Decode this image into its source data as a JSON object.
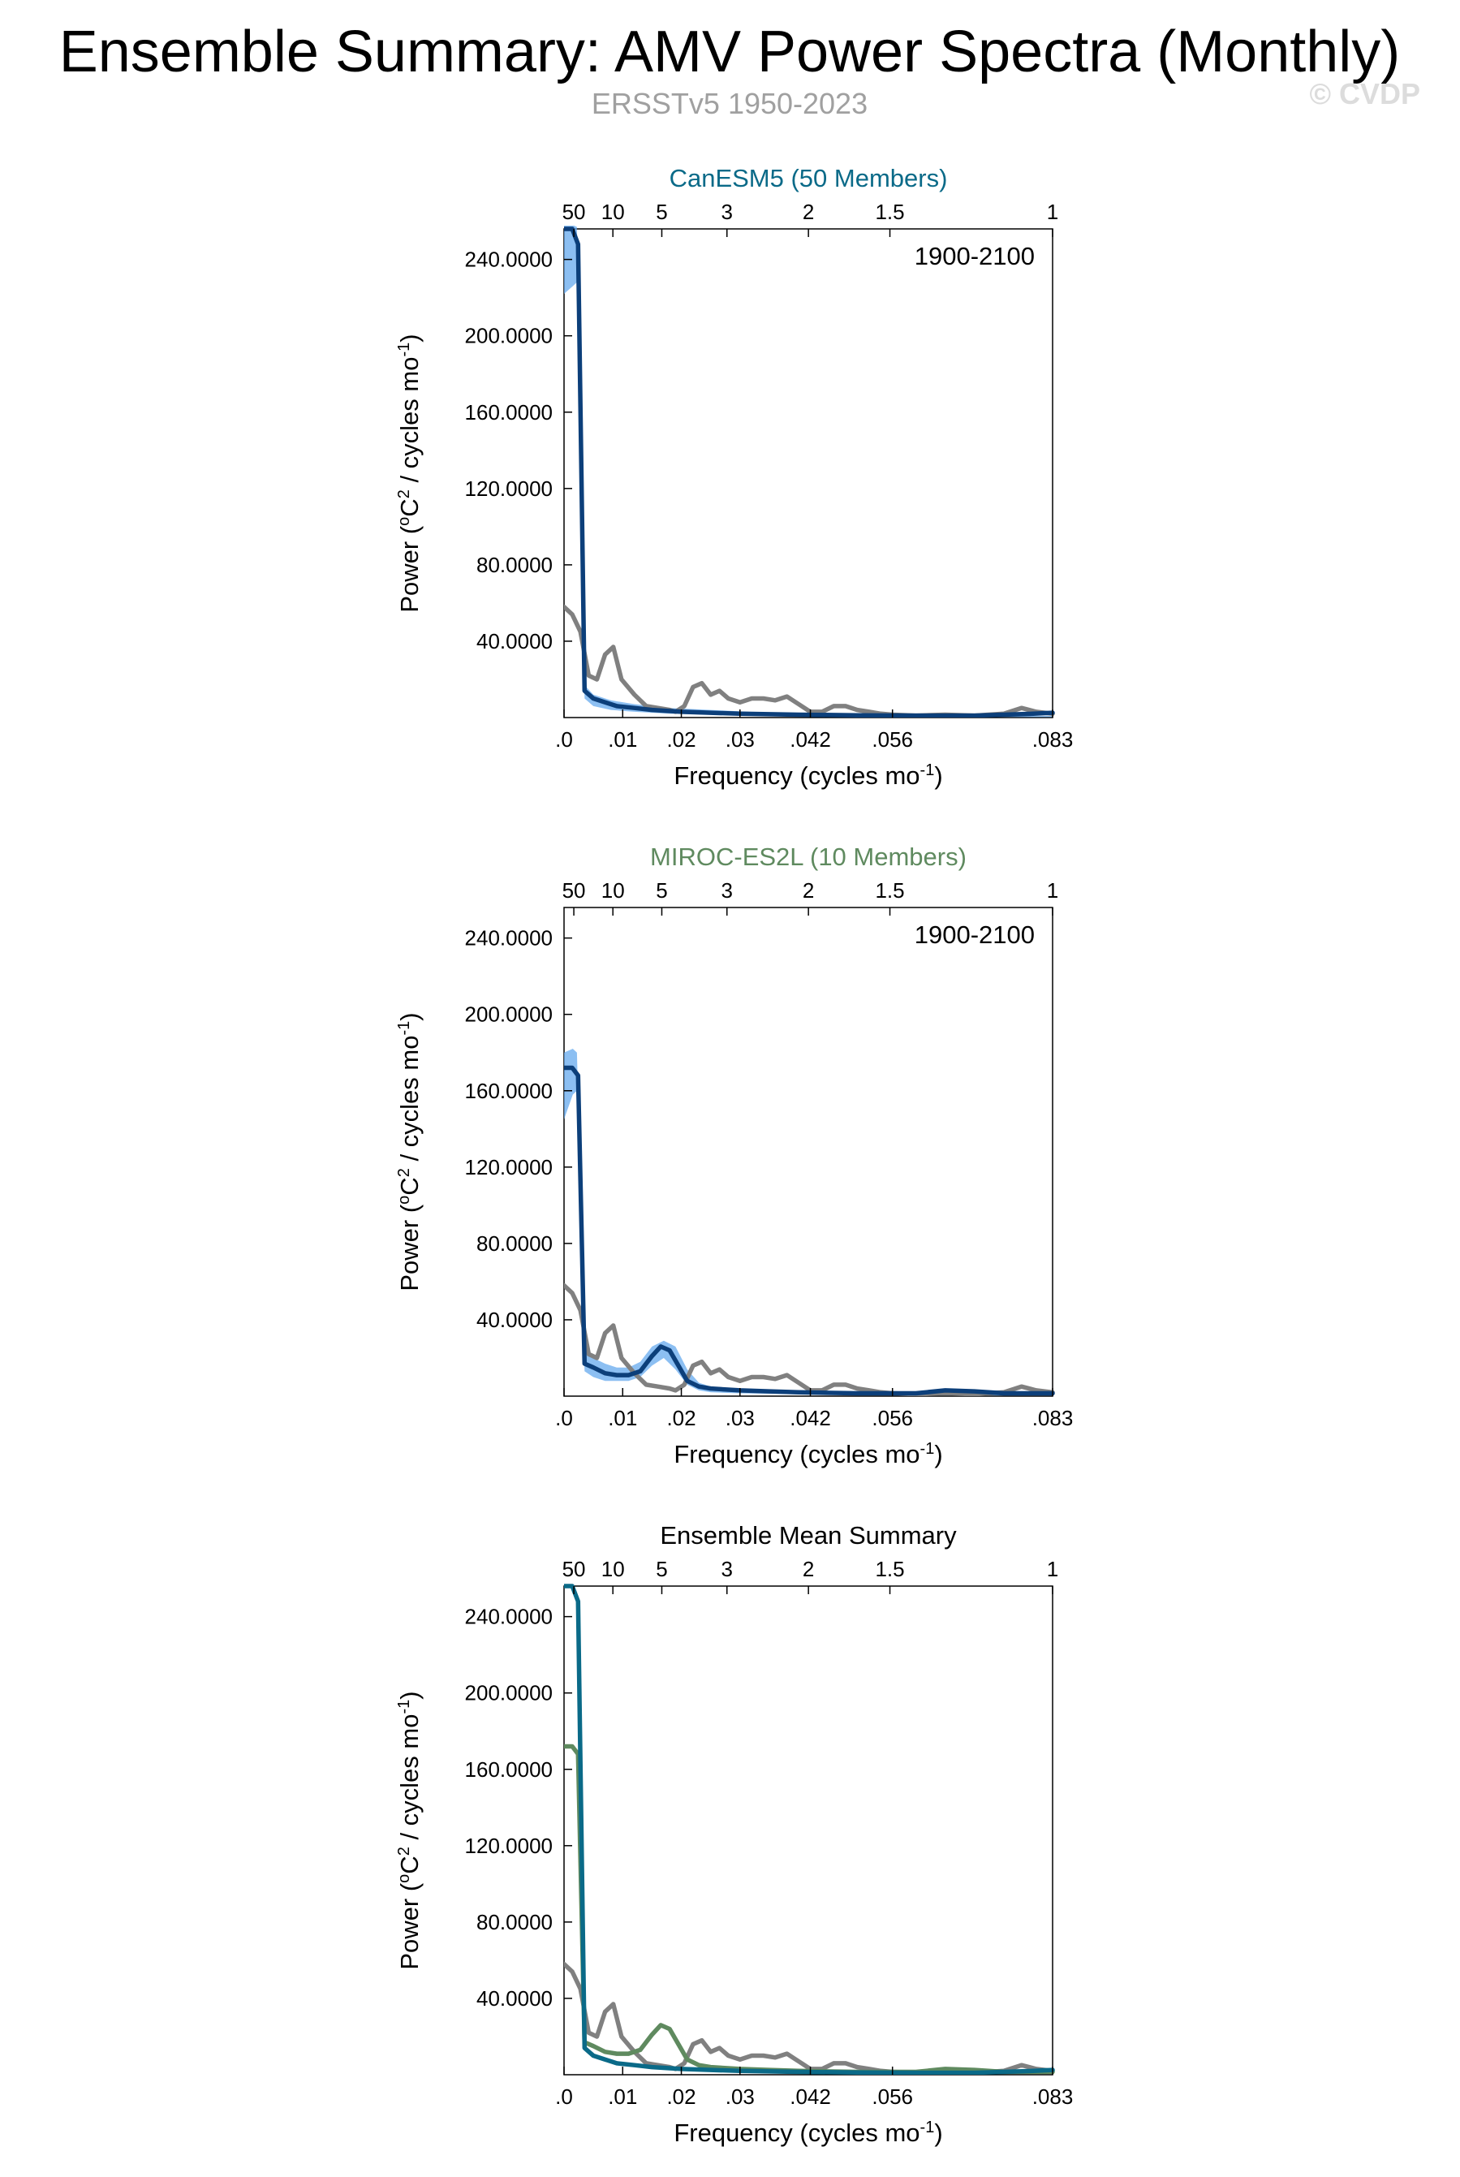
{
  "figure": {
    "title": "Ensemble Summary: AMV Power Spectra (Monthly)",
    "subtitle": "ERSSTv5 1950-2023",
    "watermark": "© CVDP"
  },
  "colors": {
    "observations": "#808080",
    "member_spread": "#66aaee",
    "canesm5": "#0a6a88",
    "miroc": "#5f8a5f",
    "ensemble_mean": "#0c3f7a"
  },
  "chart_data": [
    {
      "type": "line",
      "title": "CanESM5 (50 Members)",
      "title_color": "#0a6a88",
      "period_label": "1900-2100",
      "xlabel": "Frequency (cycles mo",
      "xlabel_sup": "-1",
      "xlabel_end": ")",
      "ylabel": "Power (",
      "ylabel_parts": [
        "o",
        "C",
        "2",
        " / cycles mo",
        "-1",
        ")"
      ],
      "xlim": [
        0,
        0.0833
      ],
      "ylim": [
        0,
        256
      ],
      "x_ticks": [
        {
          "v": 0,
          "label": ".0"
        },
        {
          "v": 0.01,
          "label": ".01"
        },
        {
          "v": 0.02,
          "label": ".02"
        },
        {
          "v": 0.03,
          "label": ".03"
        },
        {
          "v": 0.042,
          "label": ".042"
        },
        {
          "v": 0.056,
          "label": ".056"
        },
        {
          "v": 0.0833,
          "label": ".083"
        }
      ],
      "top_ticks": [
        {
          "v": 0.00167,
          "label": "50"
        },
        {
          "v": 0.00833,
          "label": "10"
        },
        {
          "v": 0.01667,
          "label": "5"
        },
        {
          "v": 0.02778,
          "label": "3"
        },
        {
          "v": 0.04167,
          "label": "2"
        },
        {
          "v": 0.05556,
          "label": "1.5"
        },
        {
          "v": 0.0833,
          "label": "1"
        }
      ],
      "y_ticks": [
        {
          "v": 40,
          "label": "40.0000"
        },
        {
          "v": 80,
          "label": "80.0000"
        },
        {
          "v": 120,
          "label": "120.0000"
        },
        {
          "v": 160,
          "label": "160.0000"
        },
        {
          "v": 200,
          "label": "200.0000"
        },
        {
          "v": 240,
          "label": "240.0000"
        }
      ],
      "band": {
        "x": [
          0,
          0.0015,
          0.0022,
          0.0035,
          0.005,
          0.008,
          0.012,
          0.018,
          0.025,
          0.035,
          0.05,
          0.07,
          0.0833
        ],
        "lower": [
          222,
          226,
          228,
          10,
          6,
          4,
          3,
          2,
          1.5,
          1.0,
          0.5,
          0.3,
          0.2
        ],
        "upper": [
          258,
          258,
          257,
          17,
          12,
          9,
          7,
          5,
          4,
          2.5,
          1.5,
          1.0,
          0.8
        ]
      },
      "series": [
        {
          "color": "#808080",
          "x": [
            0,
            0.0014,
            0.0028,
            0.0042,
            0.0056,
            0.007,
            0.0084,
            0.0098,
            0.012,
            0.014,
            0.016,
            0.018,
            0.019,
            0.0205,
            0.022,
            0.0235,
            0.025,
            0.0265,
            0.028,
            0.03,
            0.032,
            0.034,
            0.036,
            0.038,
            0.04,
            0.042,
            0.044,
            0.046,
            0.048,
            0.05,
            0.052,
            0.054,
            0.056,
            0.06,
            0.065,
            0.07,
            0.075,
            0.078,
            0.0805,
            0.0833
          ],
          "y": [
            58,
            54,
            45,
            22,
            20,
            33,
            37,
            20,
            12,
            6,
            5,
            4,
            3,
            6,
            16,
            18,
            12,
            14,
            10,
            8,
            10,
            10,
            9,
            11,
            7,
            3,
            3,
            6,
            6,
            4,
            3,
            2,
            1.5,
            1,
            1.5,
            1,
            2,
            5,
            3,
            2
          ]
        },
        {
          "color": "#0c3f7a",
          "x": [
            0,
            0.0014,
            0.0024,
            0.0035,
            0.005,
            0.007,
            0.009,
            0.012,
            0.015,
            0.02,
            0.025,
            0.03,
            0.04,
            0.05,
            0.06,
            0.07,
            0.08,
            0.0833
          ],
          "y": [
            256,
            256,
            248,
            14,
            10,
            8,
            6,
            5,
            4,
            3,
            2.5,
            2,
            1.5,
            1.2,
            1.0,
            1.0,
            2.0,
            2.5
          ]
        }
      ]
    },
    {
      "type": "line",
      "title": "MIROC-ES2L (10 Members)",
      "title_color": "#5f8a5f",
      "period_label": "1900-2100",
      "xlabel": "Frequency (cycles mo",
      "xlabel_sup": "-1",
      "xlabel_end": ")",
      "ylabel": "Power (",
      "ylabel_parts": [
        "o",
        "C",
        "2",
        " / cycles mo",
        "-1",
        ")"
      ],
      "xlim": [
        0,
        0.0833
      ],
      "ylim": [
        0,
        256
      ],
      "x_ticks": [
        {
          "v": 0,
          "label": ".0"
        },
        {
          "v": 0.01,
          "label": ".01"
        },
        {
          "v": 0.02,
          "label": ".02"
        },
        {
          "v": 0.03,
          "label": ".03"
        },
        {
          "v": 0.042,
          "label": ".042"
        },
        {
          "v": 0.056,
          "label": ".056"
        },
        {
          "v": 0.0833,
          "label": ".083"
        }
      ],
      "top_ticks": [
        {
          "v": 0.00167,
          "label": "50"
        },
        {
          "v": 0.00833,
          "label": "10"
        },
        {
          "v": 0.01667,
          "label": "5"
        },
        {
          "v": 0.02778,
          "label": "3"
        },
        {
          "v": 0.04167,
          "label": "2"
        },
        {
          "v": 0.05556,
          "label": "1.5"
        },
        {
          "v": 0.0833,
          "label": "1"
        }
      ],
      "y_ticks": [
        {
          "v": 40,
          "label": "40.0000"
        },
        {
          "v": 80,
          "label": "80.0000"
        },
        {
          "v": 120,
          "label": "120.0000"
        },
        {
          "v": 160,
          "label": "160.0000"
        },
        {
          "v": 200,
          "label": "200.0000"
        },
        {
          "v": 240,
          "label": "240.0000"
        }
      ],
      "band": {
        "x": [
          0,
          0.0015,
          0.0022,
          0.0035,
          0.005,
          0.007,
          0.009,
          0.011,
          0.013,
          0.015,
          0.017,
          0.019,
          0.021,
          0.023,
          0.025,
          0.03,
          0.04,
          0.05,
          0.06,
          0.07,
          0.0833
        ],
        "lower": [
          145,
          158,
          160,
          13,
          10,
          8,
          8,
          8,
          10,
          16,
          20,
          14,
          6,
          3,
          2,
          1.5,
          1.0,
          0.5,
          0.3,
          0.3,
          0.3
        ],
        "upper": [
          180,
          182,
          180,
          23,
          20,
          17,
          15,
          15,
          18,
          26,
          29,
          26,
          14,
          7,
          5,
          3.5,
          2.5,
          2,
          2,
          2.5,
          1.5
        ]
      },
      "series": [
        {
          "color": "#808080",
          "x": [
            0,
            0.0014,
            0.0028,
            0.0042,
            0.0056,
            0.007,
            0.0084,
            0.0098,
            0.012,
            0.014,
            0.016,
            0.018,
            0.019,
            0.0205,
            0.022,
            0.0235,
            0.025,
            0.0265,
            0.028,
            0.03,
            0.032,
            0.034,
            0.036,
            0.038,
            0.04,
            0.042,
            0.044,
            0.046,
            0.048,
            0.05,
            0.052,
            0.054,
            0.056,
            0.06,
            0.065,
            0.07,
            0.075,
            0.078,
            0.0805,
            0.0833
          ],
          "y": [
            58,
            54,
            45,
            22,
            20,
            33,
            37,
            20,
            12,
            6,
            5,
            4,
            3,
            6,
            16,
            18,
            12,
            14,
            10,
            8,
            10,
            10,
            9,
            11,
            7,
            3,
            3,
            6,
            6,
            4,
            3,
            2,
            1.5,
            1,
            1.5,
            1,
            2,
            5,
            3,
            2
          ]
        },
        {
          "color": "#0c3f7a",
          "x": [
            0,
            0.0014,
            0.0024,
            0.0035,
            0.005,
            0.007,
            0.009,
            0.011,
            0.013,
            0.015,
            0.0165,
            0.018,
            0.0195,
            0.021,
            0.023,
            0.025,
            0.03,
            0.035,
            0.04,
            0.05,
            0.06,
            0.065,
            0.07,
            0.075,
            0.08,
            0.0833
          ],
          "y": [
            172,
            172,
            168,
            17,
            15,
            12,
            11,
            11,
            13,
            21,
            26,
            24,
            16,
            8,
            5,
            4,
            3,
            2.5,
            2,
            1.5,
            1.5,
            3,
            2.5,
            1.5,
            1.5,
            1.5
          ]
        }
      ]
    },
    {
      "type": "line",
      "title": "Ensemble Mean Summary",
      "title_color": "#000000",
      "xlabel": "Frequency (cycles mo",
      "xlabel_sup": "-1",
      "xlabel_end": ")",
      "ylabel": "Power (",
      "ylabel_parts": [
        "o",
        "C",
        "2",
        " / cycles mo",
        "-1",
        ")"
      ],
      "xlim": [
        0,
        0.0833
      ],
      "ylim": [
        0,
        256
      ],
      "x_ticks": [
        {
          "v": 0,
          "label": ".0"
        },
        {
          "v": 0.01,
          "label": ".01"
        },
        {
          "v": 0.02,
          "label": ".02"
        },
        {
          "v": 0.03,
          "label": ".03"
        },
        {
          "v": 0.042,
          "label": ".042"
        },
        {
          "v": 0.056,
          "label": ".056"
        },
        {
          "v": 0.0833,
          "label": ".083"
        }
      ],
      "top_ticks": [
        {
          "v": 0.00167,
          "label": "50"
        },
        {
          "v": 0.00833,
          "label": "10"
        },
        {
          "v": 0.01667,
          "label": "5"
        },
        {
          "v": 0.02778,
          "label": "3"
        },
        {
          "v": 0.04167,
          "label": "2"
        },
        {
          "v": 0.05556,
          "label": "1.5"
        },
        {
          "v": 0.0833,
          "label": "1"
        }
      ],
      "y_ticks": [
        {
          "v": 40,
          "label": "40.0000"
        },
        {
          "v": 80,
          "label": "80.0000"
        },
        {
          "v": 120,
          "label": "120.0000"
        },
        {
          "v": 160,
          "label": "160.0000"
        },
        {
          "v": 200,
          "label": "200.0000"
        },
        {
          "v": 240,
          "label": "240.0000"
        }
      ],
      "series": [
        {
          "color": "#808080",
          "x": [
            0,
            0.0014,
            0.0028,
            0.0042,
            0.0056,
            0.007,
            0.0084,
            0.0098,
            0.012,
            0.014,
            0.016,
            0.018,
            0.019,
            0.0205,
            0.022,
            0.0235,
            0.025,
            0.0265,
            0.028,
            0.03,
            0.032,
            0.034,
            0.036,
            0.038,
            0.04,
            0.042,
            0.044,
            0.046,
            0.048,
            0.05,
            0.052,
            0.054,
            0.056,
            0.06,
            0.065,
            0.07,
            0.075,
            0.078,
            0.0805,
            0.0833
          ],
          "y": [
            58,
            54,
            45,
            22,
            20,
            33,
            37,
            20,
            12,
            6,
            5,
            4,
            3,
            6,
            16,
            18,
            12,
            14,
            10,
            8,
            10,
            10,
            9,
            11,
            7,
            3,
            3,
            6,
            6,
            4,
            3,
            2,
            1.5,
            1,
            1.5,
            1,
            2,
            5,
            3,
            2
          ]
        },
        {
          "color": "#5f8a5f",
          "x": [
            0,
            0.0014,
            0.0024,
            0.0035,
            0.005,
            0.007,
            0.009,
            0.011,
            0.013,
            0.015,
            0.0165,
            0.018,
            0.0195,
            0.021,
            0.023,
            0.025,
            0.03,
            0.035,
            0.04,
            0.05,
            0.06,
            0.065,
            0.07,
            0.075,
            0.08,
            0.0833
          ],
          "y": [
            172,
            172,
            168,
            17,
            15,
            12,
            11,
            11,
            13,
            21,
            26,
            24,
            16,
            8,
            5,
            4,
            3,
            2.5,
            2,
            1.5,
            1.5,
            3,
            2.5,
            1.5,
            1.5,
            1.5
          ]
        },
        {
          "color": "#0a6a88",
          "x": [
            0,
            0.0014,
            0.0024,
            0.0035,
            0.005,
            0.007,
            0.009,
            0.012,
            0.015,
            0.02,
            0.025,
            0.03,
            0.04,
            0.05,
            0.06,
            0.07,
            0.08,
            0.0833
          ],
          "y": [
            256,
            256,
            248,
            14,
            10,
            8,
            6,
            5,
            4,
            3,
            2.5,
            2,
            1.5,
            1.2,
            1.0,
            1.0,
            2.0,
            2.5
          ]
        }
      ]
    }
  ]
}
